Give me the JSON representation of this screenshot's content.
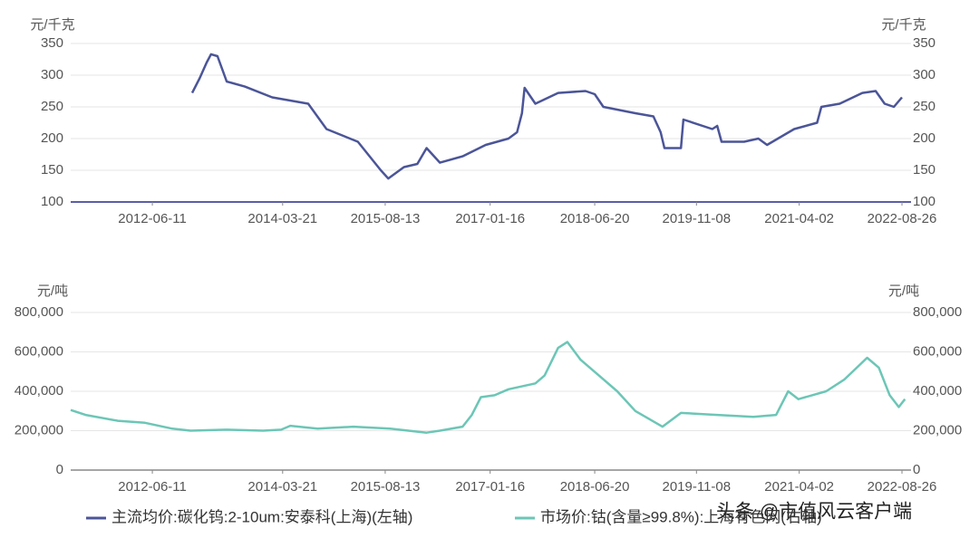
{
  "chart_data": [
    {
      "type": "line",
      "y_label": "元/千克",
      "y2_label": "元/千克",
      "grid": true,
      "xlim": [
        "2011-05-02",
        "2022-10-10"
      ],
      "xticks": [
        "2012-06-11",
        "2014-03-21",
        "2015-08-13",
        "2017-01-16",
        "2018-06-20",
        "2019-11-08",
        "2021-04-02",
        "2022-08-26"
      ],
      "ylim": [
        100,
        350
      ],
      "yticks": [
        100,
        150,
        200,
        250,
        300,
        350
      ],
      "x": [
        "2012-12-26",
        "2013-02-01",
        "2013-03-08",
        "2013-03-30",
        "2013-05-01",
        "2013-06-16",
        "2013-09-14",
        "2014-01-28",
        "2014-07-26",
        "2014-10-25",
        "2015-03-30",
        "2015-07-22",
        "2015-08-28",
        "2015-11-14",
        "2016-01-20",
        "2016-03-06",
        "2016-05-11",
        "2016-09-01",
        "2016-12-25",
        "2017-04-17",
        "2017-05-30",
        "2017-06-23",
        "2017-07-06",
        "2017-08-29",
        "2017-12-20",
        "2018-05-05",
        "2018-06-20",
        "2018-08-02",
        "2019-01-08",
        "2019-04-08",
        "2019-05-14",
        "2019-06-02",
        "2019-08-23",
        "2019-09-04",
        "2020-01-26",
        "2020-02-19",
        "2020-03-12",
        "2020-07-02",
        "2020-09-11",
        "2020-10-24",
        "2021-03-08",
        "2021-06-30",
        "2021-07-21",
        "2021-10-20",
        "2022-02-10",
        "2022-04-17",
        "2022-06-01",
        "2022-07-17",
        "2022-08-26"
      ],
      "series": [
        {
          "name": "主流均价:碳化钨:2-10um:安泰科(上海)(左轴)",
          "color": "#4b5598",
          "values": [
            272,
            295,
            320,
            333,
            330,
            290,
            282,
            265,
            255,
            215,
            195,
            150,
            137,
            155,
            160,
            185,
            162,
            172,
            190,
            200,
            210,
            240,
            280,
            255,
            272,
            275,
            270,
            250,
            240,
            235,
            210,
            185,
            185,
            230,
            215,
            220,
            195,
            195,
            200,
            190,
            215,
            225,
            250,
            255,
            272,
            275,
            255,
            250,
            265
          ]
        }
      ]
    },
    {
      "type": "line",
      "y_label": "元/吨",
      "y2_label": "元/吨",
      "grid": true,
      "xlim": [
        "2011-05-02",
        "2022-10-10"
      ],
      "xticks": [
        "2012-06-11",
        "2014-03-21",
        "2015-08-13",
        "2017-01-16",
        "2018-06-20",
        "2019-11-08",
        "2021-04-02",
        "2022-08-26"
      ],
      "ylim": [
        0,
        800000
      ],
      "yticks": [
        0,
        {
          "value": 200000,
          "label": "200,000"
        },
        {
          "value": 400000,
          "label": "400,000"
        },
        {
          "value": 600000,
          "label": "600,000"
        },
        {
          "value": 800000,
          "label": "800,000"
        }
      ],
      "x": [
        "2011-05-02",
        "2011-07-15",
        "2011-12-23",
        "2012-05-05",
        "2012-09-19",
        "2012-12-18",
        "2013-06-16",
        "2013-12-14",
        "2014-03-14",
        "2014-04-28",
        "2014-09-11",
        "2015-03-08",
        "2015-09-07",
        "2016-03-06",
        "2016-05-11",
        "2016-09-01",
        "2016-10-17",
        "2016-12-01",
        "2017-02-07",
        "2017-04-17",
        "2017-08-29",
        "2017-10-14",
        "2017-12-20",
        "2018-02-04",
        "2018-04-11",
        "2018-07-11",
        "2018-10-10",
        "2019-01-08",
        "2019-05-23",
        "2019-08-23",
        "2020-02-19",
        "2020-08-17",
        "2020-12-08",
        "2021-02-06",
        "2021-03-29",
        "2021-08-14",
        "2021-11-13",
        "2022-03-06",
        "2022-05-03",
        "2022-06-26",
        "2022-08-10",
        "2022-09-10"
      ],
      "series": [
        {
          "name": "市场价:钴(含量≥99.8%):上海有色网(右轴)",
          "color": "#6cc6b6",
          "values": [
            305000,
            280000,
            250000,
            240000,
            210000,
            200000,
            205000,
            200000,
            205000,
            225000,
            210000,
            220000,
            210000,
            190000,
            200000,
            220000,
            280000,
            370000,
            380000,
            410000,
            440000,
            480000,
            620000,
            650000,
            560000,
            480000,
            400000,
            300000,
            220000,
            290000,
            280000,
            270000,
            280000,
            400000,
            360000,
            400000,
            460000,
            570000,
            520000,
            380000,
            320000,
            360000
          ]
        }
      ]
    }
  ],
  "watermark": "头条 @市值风云客户端"
}
